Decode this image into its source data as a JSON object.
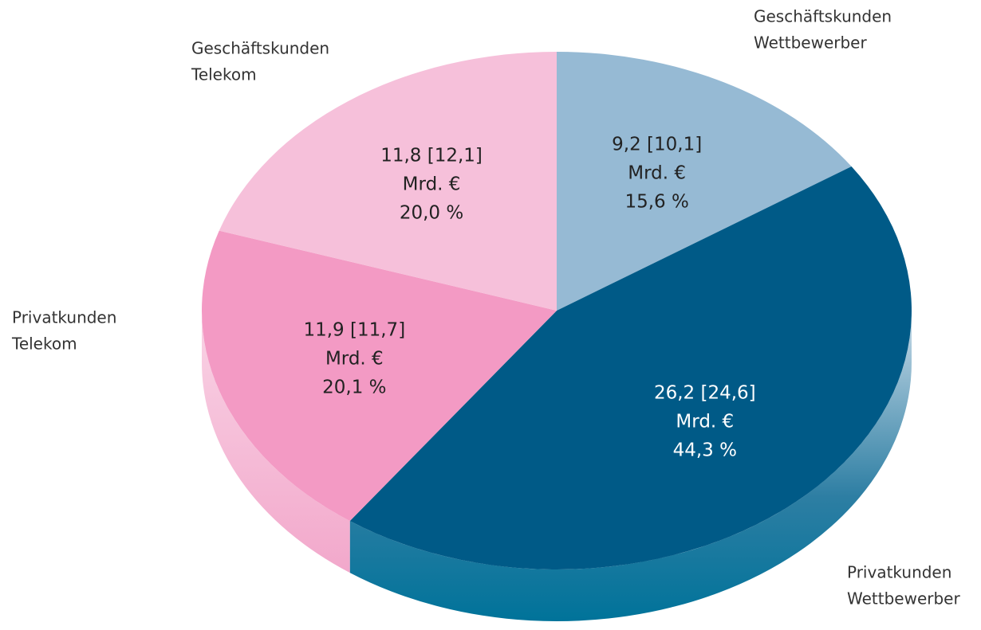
{
  "chart_data": {
    "type": "pie",
    "categories": [
      [
        "Geschäftskunden",
        "Wettbewerber"
      ],
      [
        "Privatkunden",
        "Wettbewerber"
      ],
      [
        "Privatkunden",
        "Telekom"
      ],
      [
        "Geschäftskunden",
        "Telekom"
      ]
    ],
    "values": [
      15.6,
      44.3,
      20.1,
      20.0
    ],
    "value_labels": [
      "15,6 %",
      "44,3 %",
      "20,1 %",
      "20,0 %"
    ],
    "amount_labels": [
      "9,2 [10,1]",
      "26,2 [24,6]",
      "11,9 [11,7]",
      "11,8 [12,1]"
    ],
    "unit": "Mrd. €",
    "colors": [
      "#96bad4",
      "#005a87",
      "#f39ac4",
      "#f6c0da"
    ]
  }
}
